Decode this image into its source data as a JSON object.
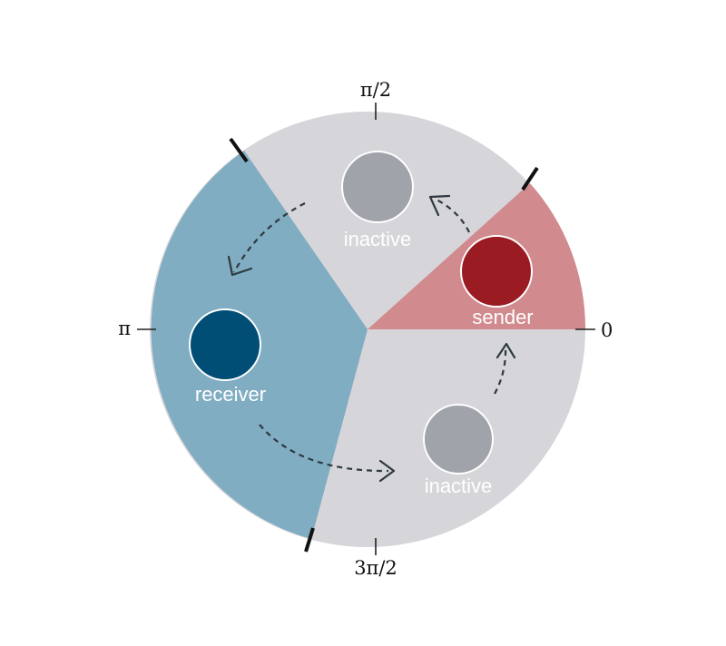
{
  "axis_labels": {
    "zero": "0",
    "half_pi": "π/2",
    "pi": "π",
    "three_half_pi": "3π/2"
  },
  "nodes": {
    "sender": {
      "label": "sender",
      "color": "#9a1c22"
    },
    "receiver": {
      "label": "receiver",
      "color": "#004e75"
    },
    "inactive_top": {
      "label": "inactive",
      "color": "#a1a3ab"
    },
    "inactive_bottom": {
      "label": "inactive",
      "color": "#a1a3ab"
    }
  },
  "sectors": {
    "sender_color": "#d18a8e",
    "receiver_color": "#80adc2",
    "inactive_color": "#d6d5da"
  }
}
